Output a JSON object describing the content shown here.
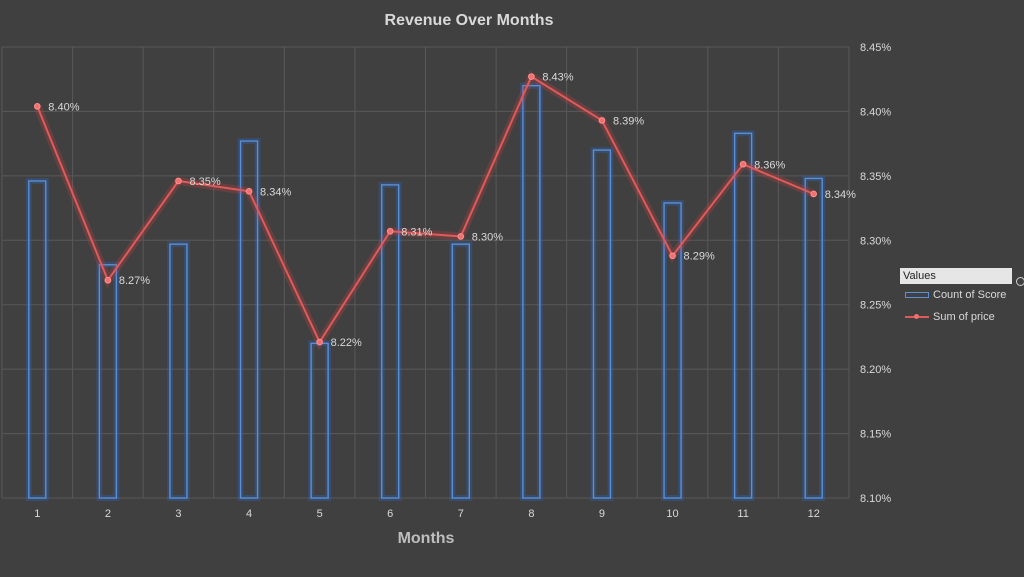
{
  "chart_data": {
    "type": "bar+line",
    "title": "Revenue Over Months",
    "xlabel": "Months",
    "categories": [
      "1",
      "2",
      "3",
      "4",
      "5",
      "6",
      "7",
      "8",
      "9",
      "10",
      "11",
      "12"
    ],
    "series": [
      {
        "name": "Count of Score",
        "type": "bar",
        "axis": "primary",
        "values": [
          246,
          181,
          197,
          277,
          120,
          243,
          197,
          320,
          270,
          229,
          283,
          248
        ]
      },
      {
        "name": "Sum of price",
        "type": "line",
        "axis": "secondary",
        "values": [
          8.404,
          8.269,
          8.346,
          8.338,
          8.221,
          8.307,
          8.303,
          8.427,
          8.393,
          8.288,
          8.359,
          8.336
        ],
        "data_labels": [
          "8.40%",
          "8.27%",
          "8.35%",
          "8.34%",
          "8.22%",
          "8.31%",
          "8.30%",
          "8.43%",
          "8.39%",
          "8.29%",
          "8.36%",
          "8.34%"
        ]
      }
    ],
    "primary_ylim": [
      0,
      350
    ],
    "secondary_ylim": [
      8.1,
      8.45
    ],
    "secondary_ticks": [
      "8.10%",
      "8.15%",
      "8.20%",
      "8.25%",
      "8.30%",
      "8.35%",
      "8.40%",
      "8.45%"
    ],
    "grid": true,
    "legend": {
      "title": "Values",
      "placement": "right",
      "entries": [
        "Count of Score",
        "Sum of price"
      ]
    },
    "colors": {
      "background": "#404040",
      "bar": "#5b8fd6",
      "line": "#e05a5a"
    }
  }
}
